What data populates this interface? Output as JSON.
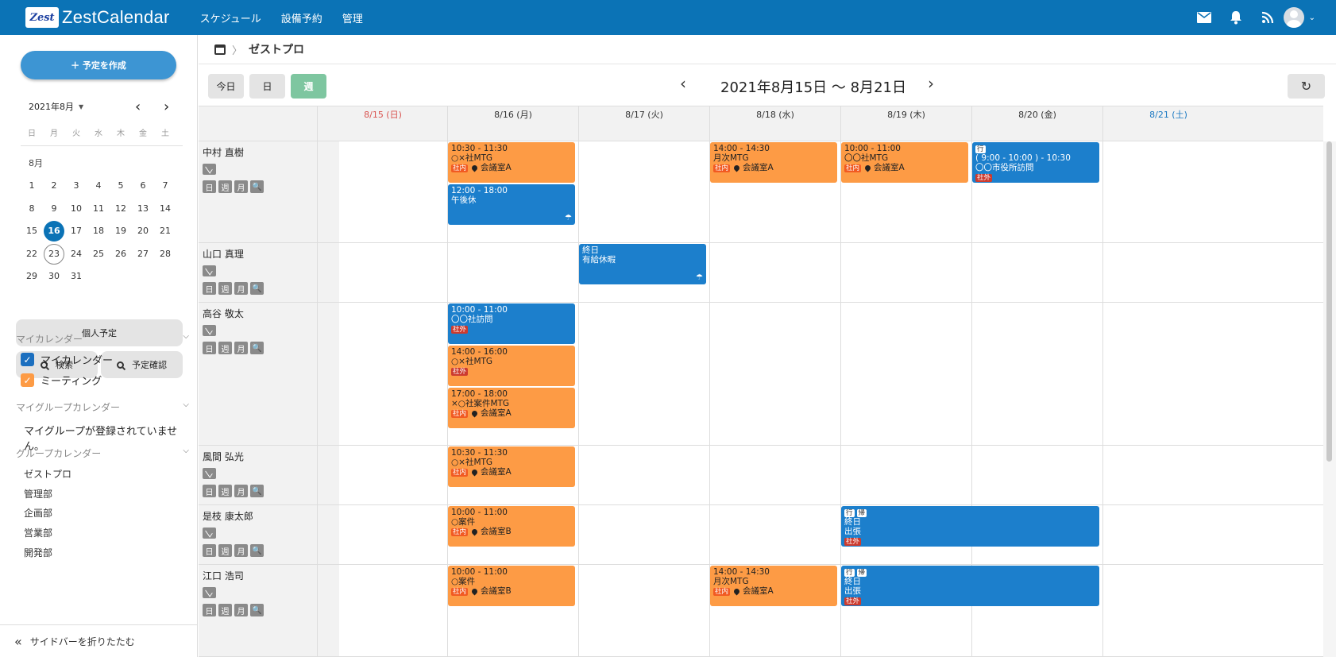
{
  "header": {
    "logo_mark": "Zest",
    "logo_text": "ZestCalendar",
    "nav": [
      "スケジュール",
      "設備予約",
      "管理"
    ],
    "icons": [
      "mail-icon",
      "bell-icon",
      "rss-icon",
      "user-avatar"
    ]
  },
  "sidebar": {
    "create_label": "＋ 予定を作成",
    "mini": {
      "label": "2021年8月",
      "weekdays": [
        "日",
        "月",
        "火",
        "水",
        "木",
        "金",
        "土"
      ],
      "month": "8月",
      "weeks": [
        [
          "",
          "",
          "",
          "",
          "",
          "",
          ""
        ],
        [
          "1",
          "2",
          "3",
          "4",
          "5",
          "6",
          "7"
        ],
        [
          "8",
          "9",
          "10",
          "11",
          "12",
          "13",
          "14"
        ],
        [
          "15",
          "16",
          "17",
          "18",
          "19",
          "20",
          "21"
        ],
        [
          "22",
          "23",
          "24",
          "25",
          "26",
          "27",
          "28"
        ],
        [
          "29",
          "30",
          "31",
          "",
          "",
          "",
          ""
        ]
      ],
      "today": "16",
      "selected": "23"
    },
    "personal_label": "個人予定",
    "search_label": "検索",
    "check_label": "予定確認",
    "my_calendar_title": "マイカレンダー",
    "my_calendars": [
      {
        "label": "マイカレンダー",
        "color": "#1c6fbf"
      },
      {
        "label": "ミーティング",
        "color": "#fd9b45"
      }
    ],
    "my_group_title": "マイグループカレンダー",
    "no_group_text": "マイグループが登録されていません。",
    "group_title": "グループカレンダー",
    "groups": [
      "ゼストプロ",
      "管理部",
      "企画部",
      "営業部",
      "開発部"
    ],
    "collapse_label": "サイドバーを折りたたむ"
  },
  "breadcrumb": {
    "title": "ゼストプロ"
  },
  "toolbar": {
    "today_label": "今日",
    "day_label": "日",
    "week_label": "週",
    "range": "2021年8月15日 〜 8月21日",
    "prev": "‹",
    "next": "›"
  },
  "days": [
    {
      "label": "8/15 (日)",
      "type": "sun"
    },
    {
      "label": "8/16 (月)",
      "type": ""
    },
    {
      "label": "8/17 (火)",
      "type": ""
    },
    {
      "label": "8/18 (水)",
      "type": ""
    },
    {
      "label": "8/19 (木)",
      "type": ""
    },
    {
      "label": "8/20 (金)",
      "type": ""
    },
    {
      "label": "8/21 (土)",
      "type": "sat"
    }
  ],
  "member_buttons": [
    "日",
    "週",
    "月",
    "🔍"
  ],
  "members": [
    {
      "name": "中村 直樹"
    },
    {
      "name": "山口 真理"
    },
    {
      "name": "高谷 敬太"
    },
    {
      "name": "風間 弘光"
    },
    {
      "name": "是枝 康太郎"
    },
    {
      "name": "江口 浩司"
    }
  ],
  "events": [
    {
      "row": 0,
      "day": 1,
      "span": 1,
      "slot": 0,
      "color": "orange",
      "lines": [
        "10:30 - 11:30",
        "○×社MTG"
      ],
      "tag": "社内",
      "room": "会議室A"
    },
    {
      "row": 0,
      "day": 1,
      "span": 1,
      "slot": 1,
      "color": "blue",
      "lines": [
        "12:00 - 18:00",
        "午後休"
      ],
      "icon": true
    },
    {
      "row": 0,
      "day": 3,
      "span": 1,
      "slot": 0,
      "color": "orange",
      "lines": [
        "14:00 - 14:30",
        "月次MTG"
      ],
      "tag": "社内",
      "room": "会議室A"
    },
    {
      "row": 0,
      "day": 4,
      "span": 1,
      "slot": 0,
      "color": "orange",
      "lines": [
        "10:00 - 11:00",
        "〇〇社MTG"
      ],
      "tag": "社内",
      "room": "会議室A"
    },
    {
      "row": 0,
      "day": 5,
      "span": 1,
      "slot": 0,
      "color": "blue",
      "pills": [
        "行"
      ],
      "lines": [
        "( 9:00 - 10:00 ) - 10:30",
        "〇〇市役所訪問"
      ],
      "tag": "社外"
    },
    {
      "row": 1,
      "day": 2,
      "span": 1,
      "slot": 0,
      "color": "blue",
      "lines": [
        "終日",
        "有給休暇"
      ],
      "icon": true
    },
    {
      "row": 2,
      "day": 1,
      "span": 1,
      "slot": 0,
      "color": "blue",
      "lines": [
        "10:00 - 11:00",
        "〇〇社訪問"
      ],
      "tag": "社外"
    },
    {
      "row": 2,
      "day": 1,
      "span": 1,
      "slot": 1,
      "color": "orange",
      "lines": [
        "14:00 - 16:00",
        "○×社MTG"
      ],
      "tag": "社外"
    },
    {
      "row": 2,
      "day": 1,
      "span": 1,
      "slot": 2,
      "color": "orange",
      "lines": [
        "17:00 - 18:00",
        "×○社案件MTG"
      ],
      "tag": "社内",
      "room": "会議室A"
    },
    {
      "row": 3,
      "day": 1,
      "span": 1,
      "slot": 0,
      "color": "orange",
      "lines": [
        "10:30 - 11:30",
        "○×社MTG"
      ],
      "tag": "社内",
      "room": "会議室A"
    },
    {
      "row": 4,
      "day": 1,
      "span": 1,
      "slot": 0,
      "color": "orange",
      "lines": [
        "10:00 - 11:00",
        "○案件"
      ],
      "tag": "社内",
      "room": "会議室B"
    },
    {
      "row": 4,
      "day": 4,
      "span": 2,
      "slot": 0,
      "color": "blue",
      "pills": [
        "行",
        "帰"
      ],
      "lines": [
        "終日",
        "出張"
      ],
      "tag": "社外"
    },
    {
      "row": 5,
      "day": 1,
      "span": 1,
      "slot": 0,
      "color": "orange",
      "lines": [
        "10:00 - 11:00",
        "○案件"
      ],
      "tag": "社内",
      "room": "会議室B"
    },
    {
      "row": 5,
      "day": 3,
      "span": 1,
      "slot": 0,
      "color": "orange",
      "lines": [
        "14:00 - 14:30",
        "月次MTG"
      ],
      "tag": "社内",
      "room": "会議室A"
    },
    {
      "row": 5,
      "day": 4,
      "span": 2,
      "slot": 0,
      "color": "blue",
      "pills": [
        "行",
        "帰"
      ],
      "lines": [
        "終日",
        "出張"
      ],
      "tag": "社外"
    }
  ]
}
